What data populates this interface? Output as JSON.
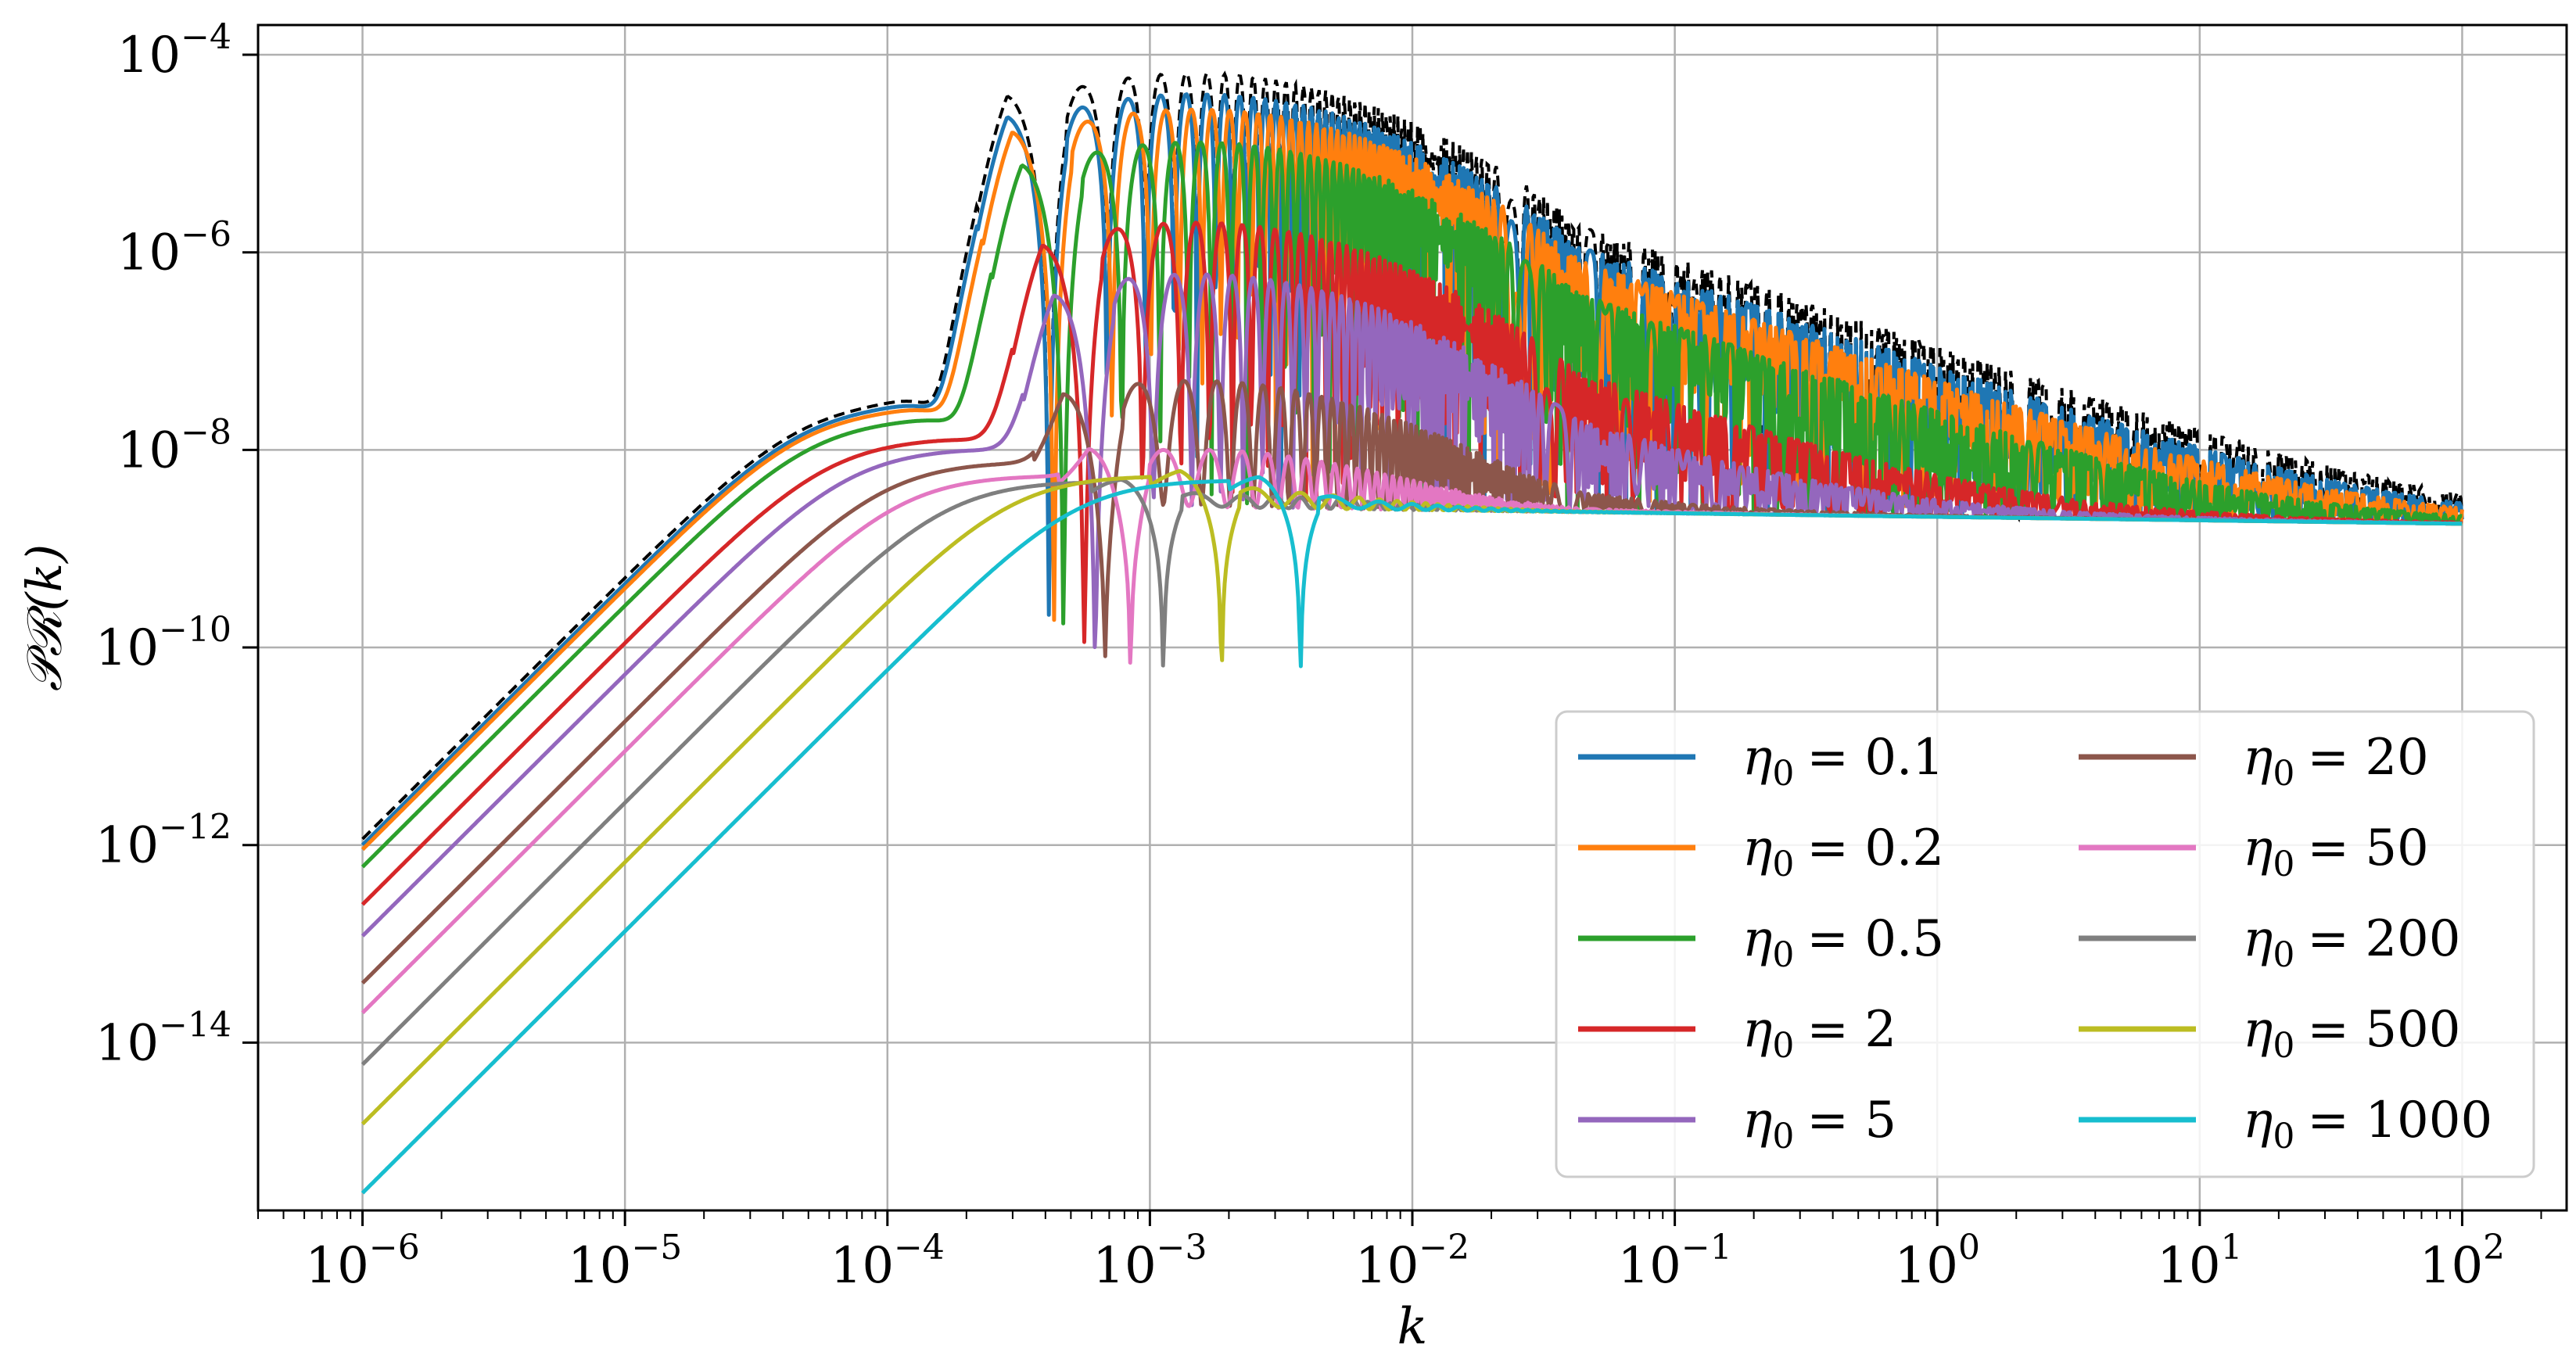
{
  "chart_data": {
    "type": "line",
    "xlabel": "k",
    "ylabel": "𝒫ℛ(k)",
    "xscale": "log",
    "yscale": "log",
    "xlim": [
      4e-07,
      250
    ],
    "ylim": [
      2e-16,
      0.0002
    ],
    "grid": true,
    "legend_position": "lower-right",
    "legend_columns": 2,
    "x_ticks": [
      {
        "value": 1e-06,
        "base": "10",
        "exp": "−6"
      },
      {
        "value": 1e-05,
        "base": "10",
        "exp": "−5"
      },
      {
        "value": 0.0001,
        "base": "10",
        "exp": "−4"
      },
      {
        "value": 0.001,
        "base": "10",
        "exp": "−3"
      },
      {
        "value": 0.01,
        "base": "10",
        "exp": "−2"
      },
      {
        "value": 0.1,
        "base": "10",
        "exp": "−1"
      },
      {
        "value": 1,
        "base": "10",
        "exp": "0"
      },
      {
        "value": 10,
        "base": "10",
        "exp": "1"
      },
      {
        "value": 100,
        "base": "10",
        "exp": "2"
      }
    ],
    "y_ticks": [
      {
        "value": 1e-14,
        "base": "10",
        "exp": "−14"
      },
      {
        "value": 1e-12,
        "base": "10",
        "exp": "−12"
      },
      {
        "value": 1e-10,
        "base": "10",
        "exp": "−10"
      },
      {
        "value": 1e-08,
        "base": "10",
        "exp": "−8"
      },
      {
        "value": 1e-06,
        "base": "10",
        "exp": "−6"
      },
      {
        "value": 0.0001,
        "base": "10",
        "exp": "−4"
      }
    ],
    "reference_curve": {
      "style": "dashed",
      "color": "#000000",
      "low_k_amplitude": 1.15e-12,
      "peak": 2.3e-08,
      "hump_peak": 6.5e-05
    },
    "series": [
      {
        "name": "η₀ = 0.1",
        "label_var": "η",
        "label_sub": "0",
        "label_val": "= 0.1",
        "color": "#1f77b4",
        "low_k_amplitude": 1e-12,
        "first_peak": 2.1e-08,
        "first_peak_k": 0.00022,
        "hump_peak": 4e-05
      },
      {
        "name": "η₀ = 0.2",
        "label_var": "η",
        "label_sub": "0",
        "label_val": "= 0.2",
        "color": "#ff7f0e",
        "low_k_amplitude": 9e-13,
        "first_peak": 1.9e-08,
        "first_peak_k": 0.00023,
        "hump_peak": 2.8e-05
      },
      {
        "name": "η₀ = 0.5",
        "label_var": "η",
        "label_sub": "0",
        "label_val": "= 0.5",
        "color": "#2ca02c",
        "low_k_amplitude": 6e-13,
        "first_peak": 1.5e-08,
        "first_peak_k": 0.00025,
        "hump_peak": 1.3e-05
      },
      {
        "name": "η₀ = 2",
        "label_var": "η",
        "label_sub": "0",
        "label_val": "= 2",
        "color": "#d62728",
        "low_k_amplitude": 2.5e-13,
        "first_peak": 9.5e-09,
        "first_peak_k": 0.0003,
        "hump_peak": 2e-06
      },
      {
        "name": "η₀ = 5",
        "label_var": "η",
        "label_sub": "0",
        "label_val": "= 5",
        "color": "#9467bd",
        "low_k_amplitude": 1.2e-13,
        "first_peak": 7.5e-09,
        "first_peak_k": 0.00033,
        "hump_peak": 6e-07
      },
      {
        "name": "η₀ = 20",
        "label_var": "η",
        "label_sub": "0",
        "label_val": "= 20",
        "color": "#8c564b",
        "low_k_amplitude": 4e-14,
        "first_peak": 5.5e-09,
        "first_peak_k": 0.00036,
        "hump_peak": 5e-08
      },
      {
        "name": "η₀ = 50",
        "label_var": "η",
        "label_sub": "0",
        "label_val": "= 50",
        "color": "#e377c2",
        "low_k_amplitude": 2e-14,
        "first_peak": 4e-09,
        "first_peak_k": 0.00045,
        "hump_peak": 1e-08
      },
      {
        "name": "η₀ = 200",
        "label_var": "η",
        "label_sub": "0",
        "label_val": "= 200",
        "color": "#7f7f7f",
        "low_k_amplitude": 6e-15,
        "first_peak": 3.5e-09,
        "first_peak_k": 0.0006,
        "hump_peak": 3.5e-09
      },
      {
        "name": "η₀ = 500",
        "label_var": "η",
        "label_sub": "0",
        "label_val": "= 500",
        "color": "#bcbd22",
        "low_k_amplitude": 1.5e-15,
        "first_peak": 4e-09,
        "first_peak_k": 0.001,
        "hump_peak": 4e-09
      },
      {
        "name": "η₀ = 1000",
        "label_var": "η",
        "label_sub": "0",
        "label_val": "= 1000",
        "color": "#17becf",
        "low_k_amplitude": 3e-16,
        "first_peak": 3.6e-09,
        "first_peak_k": 0.002,
        "hump_peak": 3.6e-09
      }
    ],
    "asymptote": {
      "value_at_k1": 2.1e-09,
      "tilt": -0.035,
      "k_end": 100
    }
  }
}
